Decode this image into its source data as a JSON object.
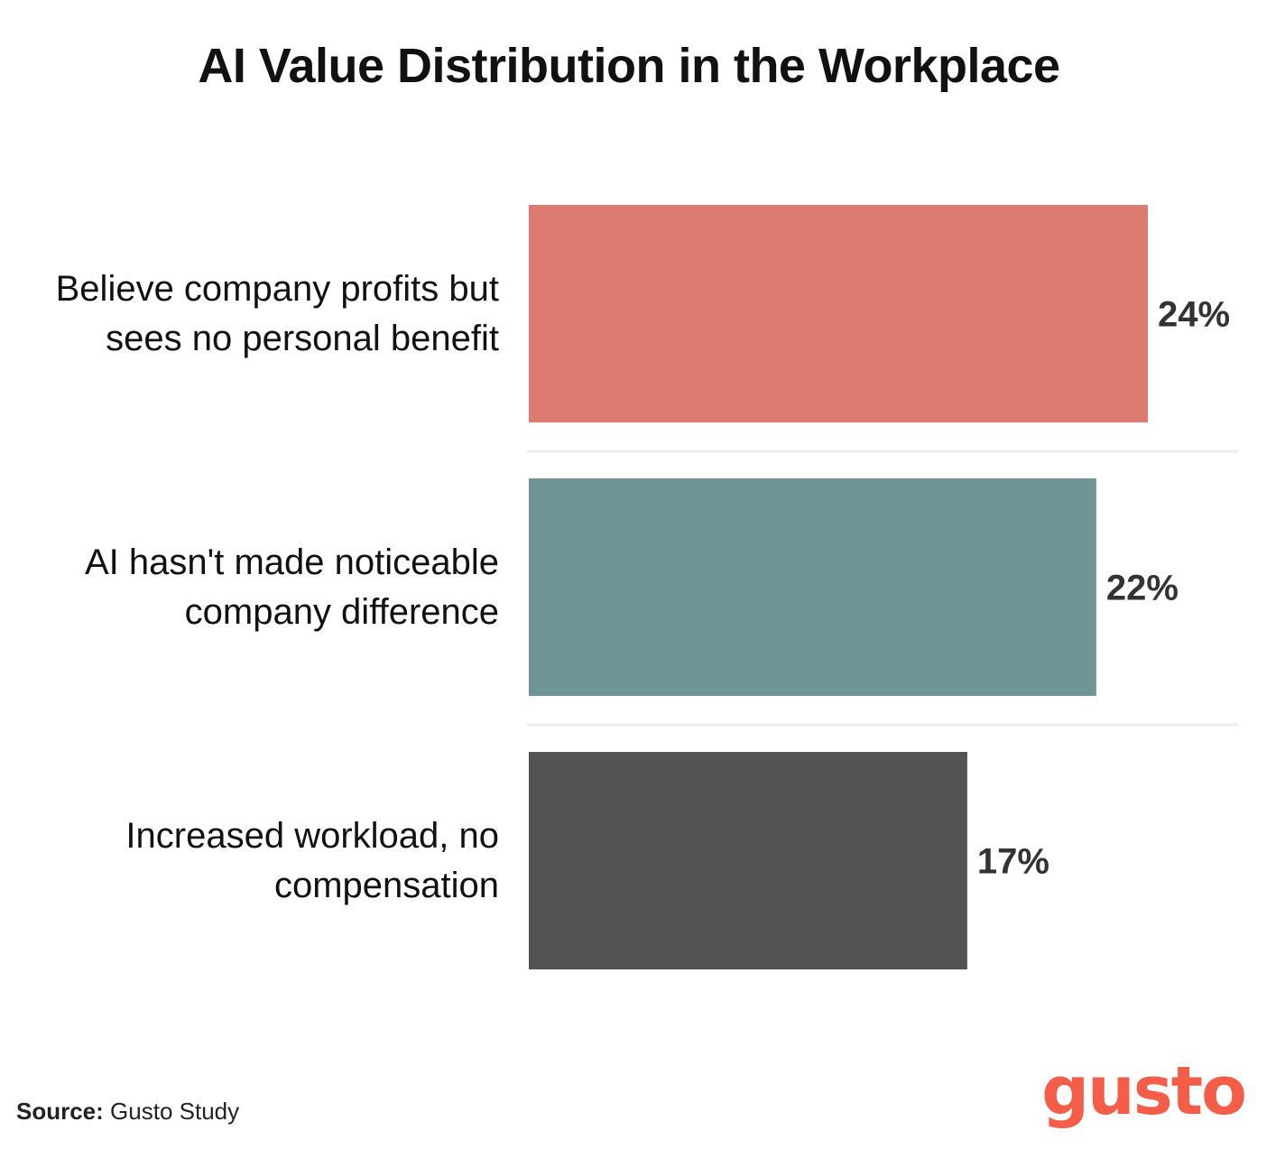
{
  "chart_data": {
    "type": "bar",
    "orientation": "horizontal",
    "title": "AI Value Distribution in the Workplace",
    "categories": [
      [
        "Believe company profits but",
        "sees no personal benefit"
      ],
      [
        "AI hasn't made noticeable",
        "company difference"
      ],
      [
        "Increased workload, no",
        "compensation"
      ]
    ],
    "values": [
      24,
      22,
      17
    ],
    "value_labels": [
      "24%",
      "22%",
      "17%"
    ],
    "colors": [
      "#de7b70",
      "#6f9596",
      "#535353"
    ],
    "xlabel": "",
    "ylabel": "",
    "xlim": [
      0,
      24
    ],
    "grid": false,
    "legend": "none"
  },
  "footer": {
    "source_label": "Source:",
    "source_text": "Gusto Study"
  },
  "brand": {
    "logo_text": "gusto",
    "logo_color": "#f45d48"
  },
  "colors": {
    "separator": "#ebebeb",
    "label_text": "#111111",
    "value_text": "#333333"
  }
}
